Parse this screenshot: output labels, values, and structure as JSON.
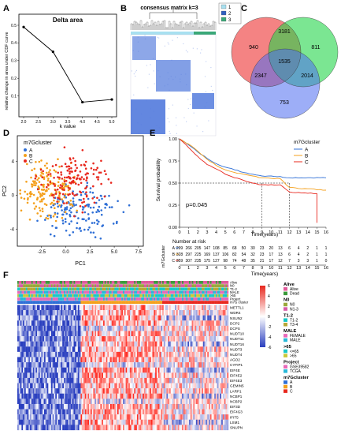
{
  "panels": {
    "a": "A",
    "b": "B",
    "c": "C",
    "d": "D",
    "e": "E",
    "f": "F"
  },
  "colors": {
    "red": "#e8281e",
    "orange": "#f4a01c",
    "blue": "#2f6fd6",
    "venn_red": "#f26d6d",
    "venn_green": "#23d64a",
    "venn_blue": "#4c6cf0",
    "heat_high": "#e8281e",
    "heat_mid": "#ffffff",
    "heat_low": "#2a3fbf"
  },
  "chart_data": [
    {
      "id": "delta-area",
      "type": "line",
      "title": "Delta area",
      "xlabel": "k value",
      "ylabel": "relative change in area under CDF curve",
      "x": [
        2,
        3,
        4,
        5
      ],
      "values": [
        0.49,
        0.35,
        0.065,
        0.08
      ],
      "xlim": [
        2,
        5
      ],
      "ylim": [
        0,
        0.5
      ],
      "xticks": [
        "2.0",
        "2.5",
        "3.0",
        "3.5",
        "4.0",
        "4.5",
        "5.0"
      ],
      "yticks": [
        "0.1",
        "0.2",
        "0.3",
        "0.4",
        "0.5"
      ]
    },
    {
      "id": "consensus-matrix",
      "type": "heatmap",
      "title": "consensus matrix k=3",
      "legend": [
        "1",
        "2",
        "3"
      ],
      "legend_colors": [
        "#a8e0f0",
        "#2f5fbf",
        "#3aa878"
      ]
    },
    {
      "id": "venn",
      "type": "table",
      "values": [
        "940",
        "3181",
        "811",
        "1535",
        "2347",
        "2014",
        "753"
      ]
    },
    {
      "id": "pca",
      "type": "scatter",
      "legend_title": "m7Gcluster",
      "series": [
        {
          "name": "A",
          "color": "#2f6fd6"
        },
        {
          "name": "B",
          "color": "#f4a01c"
        },
        {
          "name": "C",
          "color": "#e8281e"
        }
      ],
      "xlabel": "PC1",
      "ylabel": "PC2",
      "xticks": [
        "-2.5",
        "0.0",
        "2.5",
        "5.0",
        "7.5"
      ],
      "yticks": [
        "-4",
        "0",
        "4"
      ]
    },
    {
      "id": "survival",
      "type": "line",
      "legend_title": "m7Gcluster",
      "ylabel": "Survival probability",
      "xlabel": "Time(years)",
      "annotation": "p=0.045",
      "xticks": [
        "0",
        "1",
        "2",
        "3",
        "4",
        "5",
        "6",
        "7",
        "8",
        "9",
        "10",
        "11",
        "12",
        "13",
        "14",
        "15",
        "16"
      ],
      "yticks": [
        "0.00",
        "0.25",
        "0.50",
        "0.75",
        "1.00"
      ],
      "risk_title": "Number at risk",
      "risk_axis": "m7Gcluster",
      "series": [
        {
          "name": "A",
          "color": "#2f6fd6",
          "risk": [
            "299",
            "266",
            "205",
            "147",
            "108",
            "85",
            "68",
            "50",
            "30",
            "23",
            "20",
            "13",
            "6",
            "4",
            "2",
            "1",
            "1"
          ]
        },
        {
          "name": "B",
          "color": "#f4a01c",
          "risk": [
            "328",
            "297",
            "225",
            "169",
            "137",
            "106",
            "82",
            "54",
            "32",
            "23",
            "17",
            "13",
            "6",
            "4",
            "2",
            "1",
            "1"
          ]
        },
        {
          "name": "C",
          "color": "#e8281e",
          "risk": [
            "359",
            "307",
            "235",
            "175",
            "127",
            "98",
            "74",
            "48",
            "35",
            "21",
            "17",
            "12",
            "7",
            "3",
            "3",
            "1",
            "0"
          ]
        }
      ]
    }
  ],
  "heatmap_f": {
    "annot_rows": [
      "Alive",
      "N0",
      "T1-2",
      "MALE",
      ">65",
      "Project",
      "m7G cluster"
    ],
    "genes": [
      "METTL1",
      "WDR4",
      "NSUN2",
      "DCP2",
      "DCPS",
      "NUDT10",
      "NUDT11",
      "NUDT16",
      "NUDT3",
      "NUDT4",
      "AGO2",
      "CYFIP1",
      "EIF4E",
      "EIF4E2",
      "EIF4E3",
      "GEMIN5",
      "LARP1",
      "NCBP1",
      "NCBP2",
      "EIF3D",
      "EIF4G3",
      "IFIT5",
      "LSM1",
      "SNUPN"
    ],
    "scale": [
      "6",
      "4",
      "2",
      "0",
      "-2",
      "-4",
      "-6"
    ],
    "legend": [
      {
        "title": "Alive",
        "items": [
          {
            "label": "Alive",
            "color": "#e05a9a"
          },
          {
            "label": "Dead",
            "color": "#3a9a3a"
          }
        ]
      },
      {
        "title": "N0",
        "items": [
          {
            "label": "N0",
            "color": "#9aa83a"
          },
          {
            "label": "N1-3",
            "color": "#d85aa8"
          }
        ]
      },
      {
        "title": "T1-2",
        "items": [
          {
            "label": "T1-2",
            "color": "#18c8c8"
          },
          {
            "label": "T3-4",
            "color": "#b8a838"
          }
        ]
      },
      {
        "title": "MALE",
        "items": [
          {
            "label": "FEMALE",
            "color": "#e868b8"
          },
          {
            "label": "MALE",
            "color": "#28b8d8"
          }
        ]
      },
      {
        "title": ">65",
        "items": [
          {
            "label": "<=65",
            "color": "#18c8c8"
          },
          {
            "label": ">65",
            "color": "#c8c838"
          }
        ]
      },
      {
        "title": "Project",
        "items": [
          {
            "label": "GSE39582",
            "color": "#e868b8"
          },
          {
            "label": "TCGA",
            "color": "#28b8d8"
          }
        ]
      },
      {
        "title": "m7Gcluster",
        "items": [
          {
            "label": "A",
            "color": "#2f6fd6"
          },
          {
            "label": "B",
            "color": "#f4a01c"
          },
          {
            "label": "C",
            "color": "#e8281e"
          }
        ]
      }
    ]
  }
}
